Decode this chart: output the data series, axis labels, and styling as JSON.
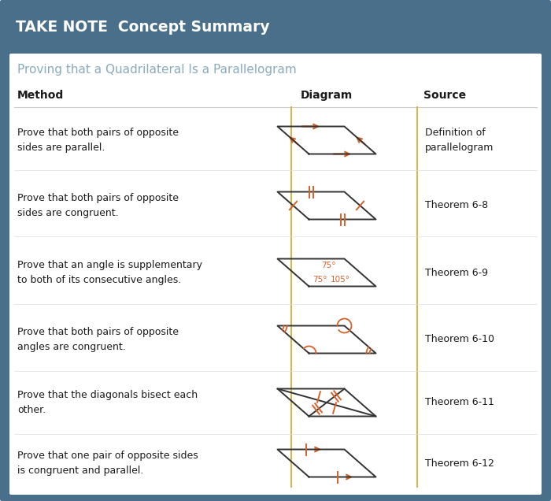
{
  "title_bar_text": "TAKE NOTE  Concept Summary",
  "title_bar_bg": "#4a6f8a",
  "title_bar_text_color": "#ffffff",
  "subtitle": "Proving that a Quadrilateral Is a Parallelogram",
  "subtitle_color": "#8aaabf",
  "bg_color": "#ffffff",
  "border_color": "#4a6f8a",
  "col_headers": [
    "Method",
    "Diagram",
    "Source"
  ],
  "divider_color": "#d4b84a",
  "methods": [
    "Prove that both pairs of opposite\nsides are parallel.",
    "Prove that both pairs of opposite\nsides are congruent.",
    "Prove that an angle is supplementary\nto both of its consecutive angles.",
    "Prove that both pairs of opposite\nangles are congruent.",
    "Prove that the diagonals bisect each\nother.",
    "Prove that one pair of opposite sides\nis congruent and parallel."
  ],
  "sources": [
    "Definition of\nparallelogram",
    "Theorem 6-8",
    "Theorem 6-9",
    "Theorem 6-10",
    "Theorem 6-11",
    "Theorem 6-12"
  ],
  "orange": "#d4622a",
  "text_color": "#1a1a1a"
}
